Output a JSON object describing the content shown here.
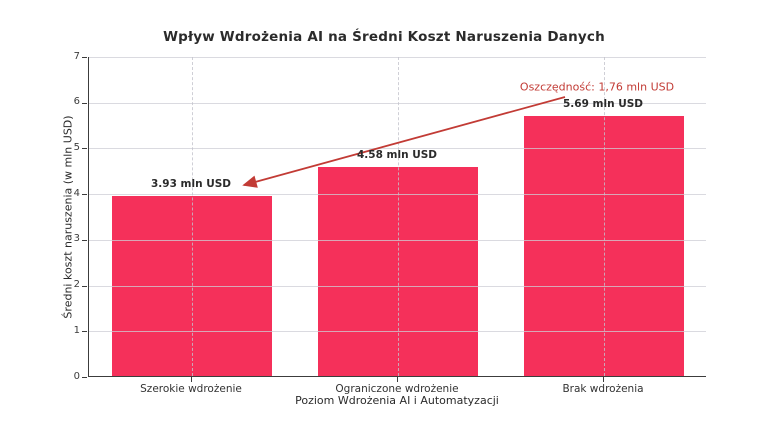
{
  "chart_data": {
    "type": "bar",
    "title": "Wpływ Wdrożenia AI na Średni Koszt Naruszenia Danych",
    "xlabel": "Poziom Wdrożenia AI i Automatyzacji",
    "ylabel": "Średni koszt naruszenia (w mln USD)",
    "categories": [
      "Szerokie wdrożenie",
      "Ograniczone wdrożenie",
      "Brak wdrożenia"
    ],
    "values": [
      3.93,
      4.58,
      5.69
    ],
    "bar_value_labels": [
      "3.93 mln USD",
      "4.58 mln USD",
      "5.69 mln USD"
    ],
    "ylim": [
      0,
      7
    ],
    "yticks": [
      0,
      1,
      2,
      3,
      4,
      5,
      6,
      7
    ],
    "grid": true,
    "legend": false,
    "annotation": {
      "text": "Oszczędność: 1,76 mln USD"
    },
    "colors": {
      "bar": "#f5305a",
      "annotation": "#c23b35",
      "axis": "#3c3c3c",
      "text": "#2b2b2b"
    }
  }
}
